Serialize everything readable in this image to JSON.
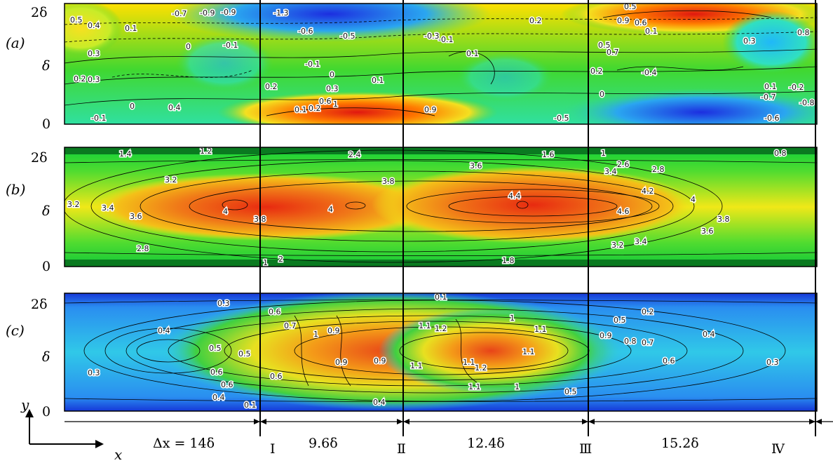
{
  "panels": [
    {
      "id": "a",
      "label": "(a)",
      "y_ticks": [
        "0",
        "δ",
        "2δ"
      ],
      "contour_labels": [
        "0.5",
        "0.4",
        "0.4",
        "-0.7",
        "-0.9",
        "-1.3",
        "-0.2",
        "0.1",
        "-0.6",
        "-0.5",
        "-0.1",
        "0.3",
        "0.2",
        "0.3",
        "0",
        "-0.1",
        "0.2",
        "0.3",
        "0.1",
        "0",
        "0.4",
        "0.1",
        "0.2",
        "0.6",
        "1",
        "0.9",
        "-0.1",
        "-0.3",
        "0.1",
        "-0.1",
        "0.2",
        "0.5",
        "0.9",
        "0.6",
        "0.1",
        "-0.3",
        "0.8",
        "0.5",
        "0.7",
        "-0.4",
        "0.2",
        "0",
        "0.1",
        "-0.7",
        "-0.2",
        "-0.5",
        "-0.6",
        "-0.8"
      ]
    },
    {
      "id": "b",
      "label": "(b)",
      "y_ticks": [
        "0",
        "δ",
        "2δ"
      ],
      "contour_labels": [
        "1.4",
        "1.2",
        "2.4",
        "1.6",
        "1",
        "0.8",
        "3.2",
        "3.8",
        "3.6",
        "2.6",
        "3.4",
        "2.8",
        "3.2",
        "3.4",
        "3.6",
        "4",
        "3.8",
        "4",
        "4.4",
        "4.2",
        "4",
        "4.6",
        "3.8",
        "3.6",
        "3.2",
        "3.4",
        "2.8",
        "1",
        "2",
        "1.8"
      ]
    },
    {
      "id": "c",
      "label": "(c)",
      "y_ticks": [
        "0",
        "δ",
        "2δ"
      ],
      "contour_labels": [
        "0.3",
        "0.1",
        "0.4",
        "0.6",
        "0.7",
        "1",
        "0.9",
        "1",
        "1.1",
        "1.2",
        "0.2",
        "0.5",
        "0.5",
        "0.4",
        "0.3",
        "0.5",
        "0.6",
        "0.8",
        "0.6",
        "0.9",
        "1.1",
        "1.2",
        "1.1",
        "0.9",
        "0.8",
        "0.7",
        "0.4",
        "0.6",
        "0.3",
        "0.6",
        "0.4",
        "0.1",
        "0.4",
        "1",
        "0.5",
        "1.1",
        "1.2"
      ]
    }
  ],
  "stations": [
    "I",
    "Ⅱ",
    "Ⅲ",
    "Ⅳ"
  ],
  "spacings": [
    "Δx = 14δ",
    "9.6δ",
    "12.4δ",
    "15.2δ"
  ],
  "axes": {
    "x": "x",
    "y": "y"
  },
  "colors": {
    "low": "#0b2bd8",
    "mid": "#1fd11f",
    "high": "#e0321a",
    "yellow": "#f2f20a"
  }
}
